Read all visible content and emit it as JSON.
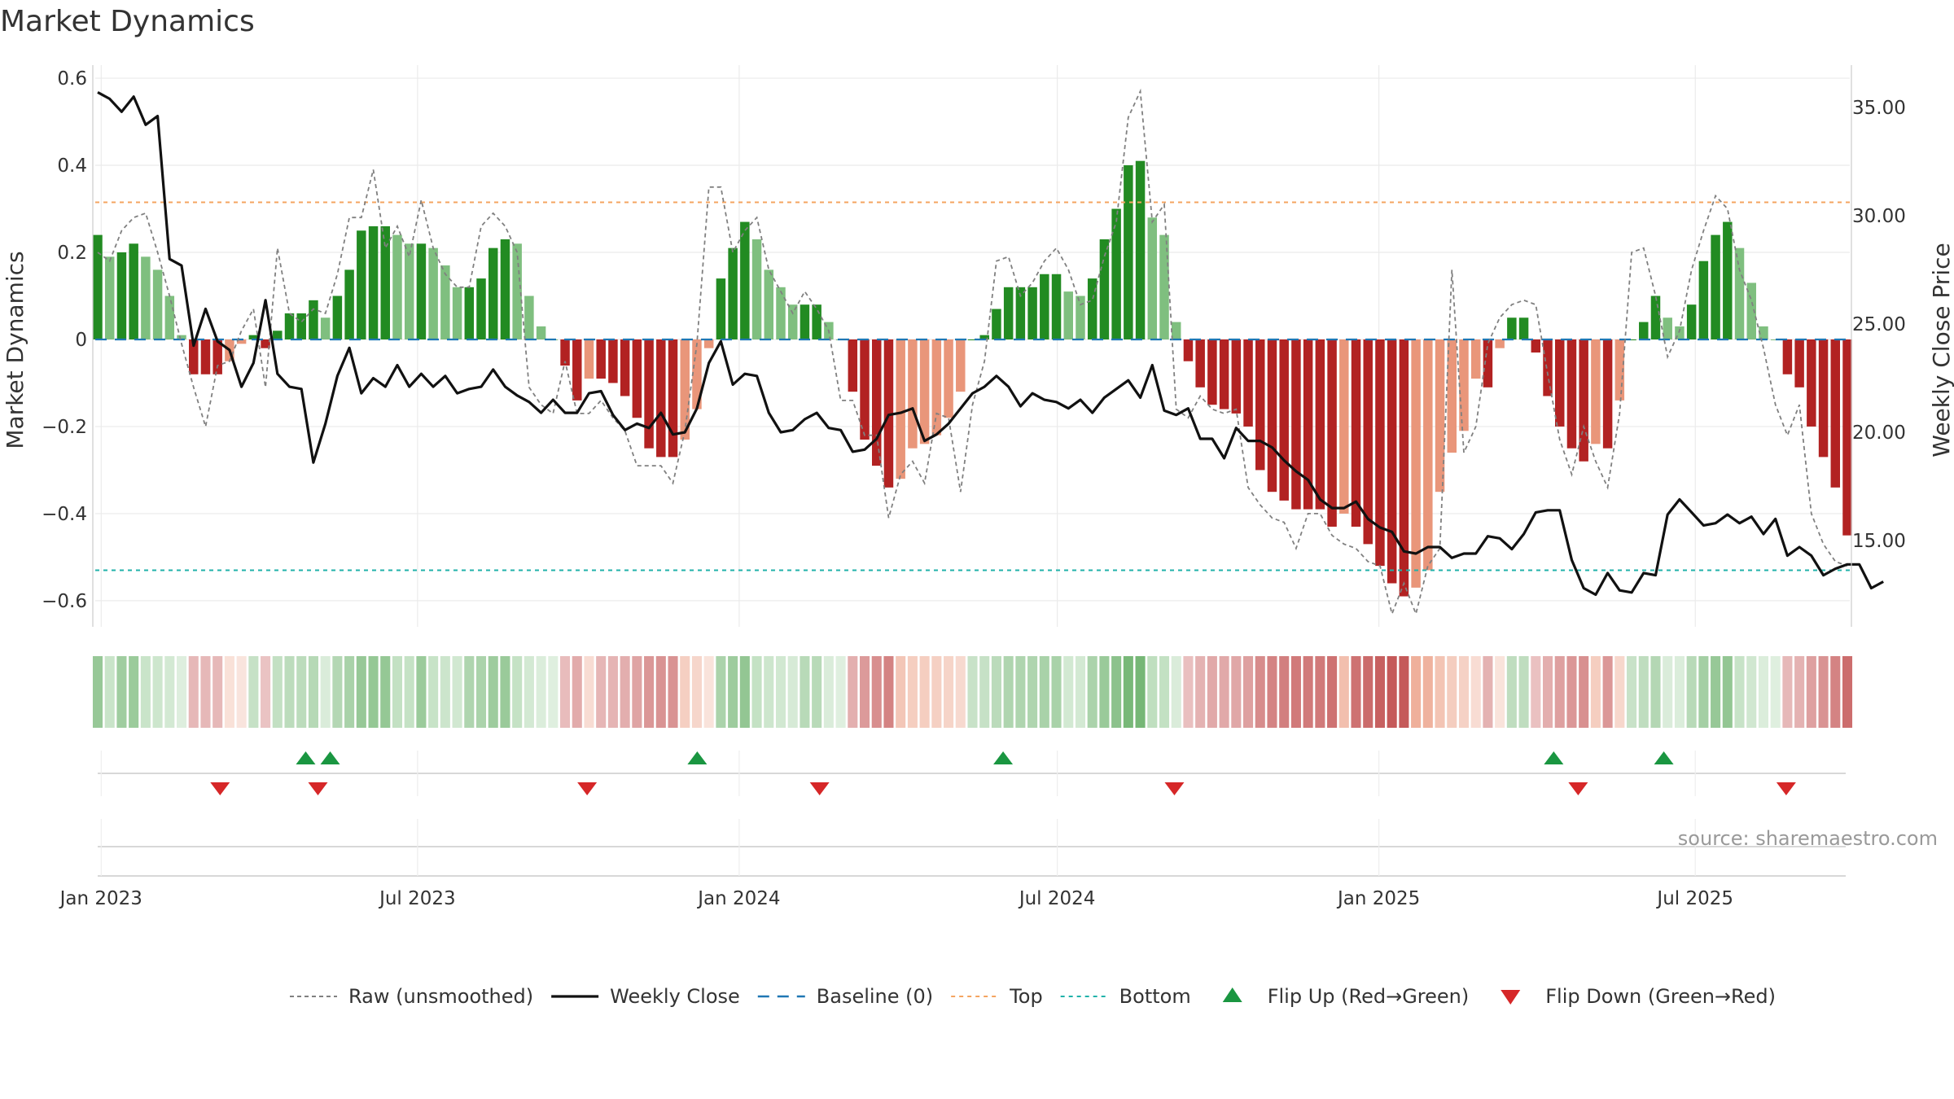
{
  "chart_data": {
    "type": "bar",
    "title": "Market Dynamics",
    "ylabel_left": "Market Dynamics",
    "ylabel_right": "Weekly Close Price",
    "source": "source: sharemaestro.com",
    "left_ylim": [
      -0.66,
      0.63
    ],
    "left_ticks": [
      0.6,
      0.4,
      0.2,
      0,
      -0.2,
      -0.4,
      -0.6
    ],
    "left_tick_labels": [
      "0.6",
      "0.4",
      "0.2",
      "0",
      "−0.2",
      "−0.4",
      "−0.6"
    ],
    "right_ticks": [
      35,
      30,
      25,
      20,
      15
    ],
    "right_tick_labels": [
      "35.00",
      "30.00",
      "25.00",
      "20.00",
      "15.00"
    ],
    "date_start": "2022-12-30",
    "date_end": "2025-09-26",
    "x_ticks": [
      {
        "date": "2023-01-01",
        "label": "Jan 2023"
      },
      {
        "date": "2023-07-01",
        "label": "Jul 2023"
      },
      {
        "date": "2024-01-01",
        "label": "Jan 2024"
      },
      {
        "date": "2024-07-01",
        "label": "Jul 2024"
      },
      {
        "date": "2025-01-01",
        "label": "Jan 2025"
      },
      {
        "date": "2025-07-01",
        "label": "Jul 2025"
      }
    ],
    "top_level": 0.315,
    "bottom_level": -0.53,
    "colors": {
      "strong_up": "#228b22",
      "weak_up": "#7fbf7f",
      "strong_down": "#b22222",
      "weak_down": "#e9967a",
      "top_line": "#f4a460",
      "bottom_line": "#20b2aa",
      "baseline": "#1f77b4",
      "close": "#111111",
      "raw": "#808080",
      "flip_up": "#1a9641",
      "flip_down": "#d62728"
    },
    "bars": [
      0.24,
      0.19,
      0.2,
      0.22,
      0.19,
      0.16,
      0.1,
      0.01,
      -0.08,
      -0.08,
      -0.08,
      -0.05,
      -0.01,
      0.01,
      -0.02,
      0.02,
      0.06,
      0.06,
      0.09,
      0.05,
      0.1,
      0.16,
      0.25,
      0.26,
      0.26,
      0.24,
      0.22,
      0.22,
      0.21,
      0.17,
      0.12,
      0.12,
      0.14,
      0.21,
      0.23,
      0.22,
      0.1,
      0.03,
      0.0,
      -0.06,
      -0.14,
      -0.09,
      -0.09,
      -0.1,
      -0.13,
      -0.18,
      -0.25,
      -0.27,
      -0.27,
      -0.23,
      -0.16,
      -0.02,
      0.14,
      0.21,
      0.27,
      0.23,
      0.16,
      0.12,
      0.08,
      0.08,
      0.08,
      0.04,
      0.0,
      -0.12,
      -0.23,
      -0.29,
      -0.34,
      -0.32,
      -0.25,
      -0.24,
      -0.22,
      -0.18,
      -0.12,
      0.0,
      0.01,
      0.07,
      0.12,
      0.12,
      0.12,
      0.15,
      0.15,
      0.11,
      0.1,
      0.14,
      0.23,
      0.3,
      0.4,
      0.41,
      0.28,
      0.24,
      0.04,
      -0.05,
      -0.11,
      -0.15,
      -0.16,
      -0.17,
      -0.2,
      -0.3,
      -0.35,
      -0.37,
      -0.39,
      -0.39,
      -0.39,
      -0.43,
      -0.4,
      -0.43,
      -0.47,
      -0.52,
      -0.56,
      -0.59,
      -0.57,
      -0.53,
      -0.35,
      -0.26,
      -0.21,
      -0.09,
      -0.11,
      -0.02,
      0.05,
      0.05,
      -0.03,
      -0.13,
      -0.2,
      -0.25,
      -0.28,
      -0.24,
      -0.25,
      -0.14,
      0.0,
      0.04,
      0.1,
      0.05,
      0.03,
      0.08,
      0.18,
      0.24,
      0.27,
      0.21,
      0.13,
      0.03,
      0.0,
      -0.08,
      -0.11,
      -0.2,
      -0.27,
      -0.34,
      -0.45
    ],
    "close": [
      35.7,
      35.4,
      34.8,
      35.5,
      34.2,
      34.6,
      28.0,
      27.7,
      24.0,
      25.7,
      24.2,
      23.8,
      22.1,
      23.2,
      26.1,
      22.7,
      22.1,
      22.0,
      18.6,
      20.4,
      22.6,
      23.9,
      21.8,
      22.5,
      22.1,
      23.1,
      22.1,
      22.7,
      22.1,
      22.6,
      21.8,
      22.0,
      22.1,
      22.9,
      22.1,
      21.7,
      21.4,
      20.9,
      21.5,
      20.9,
      20.9,
      21.8,
      21.9,
      20.8,
      20.1,
      20.4,
      20.2,
      20.9,
      19.9,
      20.0,
      21.1,
      23.2,
      24.2,
      22.2,
      22.7,
      22.6,
      20.9,
      20.0,
      20.1,
      20.6,
      20.9,
      20.2,
      20.1,
      19.1,
      19.2,
      19.7,
      20.8,
      20.9,
      21.1,
      19.6,
      19.9,
      20.4,
      21.1,
      21.8,
      22.1,
      22.6,
      22.1,
      21.2,
      21.8,
      21.5,
      21.4,
      21.1,
      21.5,
      20.9,
      21.6,
      22.0,
      22.4,
      21.6,
      23.1,
      21.0,
      20.8,
      21.1,
      19.7,
      19.7,
      18.8,
      20.2,
      19.6,
      19.6,
      19.3,
      18.7,
      18.2,
      17.8,
      16.9,
      16.5,
      16.5,
      16.8,
      16.0,
      15.6,
      15.4,
      14.5,
      14.4,
      14.7,
      14.7,
      14.2,
      14.4,
      14.4,
      15.2,
      15.1,
      14.6,
      15.3,
      16.3,
      16.4,
      16.4,
      14.1,
      12.8,
      12.5,
      13.5,
      12.7,
      12.6,
      13.5,
      13.4,
      16.2,
      16.9,
      16.3,
      15.7,
      15.8,
      16.2,
      15.8,
      16.1,
      15.3,
      16.0,
      14.3,
      14.7,
      14.3,
      13.4,
      13.7,
      13.9,
      13.9,
      12.8,
      13.1
    ],
    "raw": [
      0.2,
      0.18,
      0.25,
      0.28,
      0.29,
      0.2,
      0.1,
      -0.01,
      -0.11,
      -0.2,
      -0.06,
      -0.05,
      0.02,
      0.07,
      -0.11,
      0.21,
      0.06,
      0.04,
      0.07,
      0.06,
      0.15,
      0.28,
      0.28,
      0.39,
      0.21,
      0.26,
      0.19,
      0.32,
      0.21,
      0.15,
      0.12,
      0.12,
      0.26,
      0.29,
      0.26,
      0.2,
      -0.11,
      -0.15,
      -0.17,
      -0.05,
      -0.17,
      -0.17,
      -0.14,
      -0.18,
      -0.21,
      -0.29,
      -0.29,
      -0.29,
      -0.33,
      -0.21,
      -0.01,
      0.35,
      0.35,
      0.2,
      0.25,
      0.28,
      0.16,
      0.11,
      0.06,
      0.11,
      0.07,
      0.02,
      -0.14,
      -0.14,
      -0.22,
      -0.22,
      -0.41,
      -0.31,
      -0.28,
      -0.33,
      -0.17,
      -0.18,
      -0.35,
      -0.15,
      -0.05,
      0.18,
      0.19,
      0.1,
      0.13,
      0.18,
      0.21,
      0.16,
      0.08,
      0.09,
      0.19,
      0.27,
      0.51,
      0.57,
      0.27,
      0.31,
      -0.16,
      -0.18,
      -0.13,
      -0.16,
      -0.17,
      -0.16,
      -0.34,
      -0.38,
      -0.41,
      -0.42,
      -0.48,
      -0.4,
      -0.4,
      -0.45,
      -0.47,
      -0.48,
      -0.51,
      -0.52,
      -0.63,
      -0.56,
      -0.63,
      -0.52,
      -0.48,
      0.16,
      -0.26,
      -0.2,
      -0.01,
      0.05,
      0.08,
      0.09,
      0.08,
      -0.08,
      -0.23,
      -0.31,
      -0.2,
      -0.28,
      -0.34,
      -0.17,
      0.2,
      0.21,
      0.1,
      -0.04,
      0.02,
      0.16,
      0.25,
      0.33,
      0.3,
      0.16,
      0.09,
      -0.02,
      -0.15,
      -0.22,
      -0.15,
      -0.4,
      -0.47,
      -0.51,
      -0.52
    ],
    "flip_up": [
      {
        "date": "2023-04-28"
      },
      {
        "date": "2023-05-12"
      },
      {
        "date": "2023-12-08"
      },
      {
        "date": "2024-05-31"
      },
      {
        "date": "2025-04-11"
      },
      {
        "date": "2025-06-13"
      }
    ],
    "flip_down": [
      {
        "date": "2023-03-10"
      },
      {
        "date": "2023-05-05"
      },
      {
        "date": "2023-10-06"
      },
      {
        "date": "2024-02-16"
      },
      {
        "date": "2024-09-06"
      },
      {
        "date": "2025-04-25"
      },
      {
        "date": "2025-08-22"
      }
    ],
    "legend": [
      {
        "type": "raw",
        "label": "Raw (unsmoothed)"
      },
      {
        "type": "close",
        "label": "Weekly Close"
      },
      {
        "type": "baseline",
        "label": "Baseline (0)"
      },
      {
        "type": "top",
        "label": "Top"
      },
      {
        "type": "bottom",
        "label": "Bottom"
      },
      {
        "type": "flip_up",
        "label": "Flip Up (Red→Green)"
      },
      {
        "type": "flip_down",
        "label": "Flip Down (Green→Red)"
      }
    ]
  }
}
